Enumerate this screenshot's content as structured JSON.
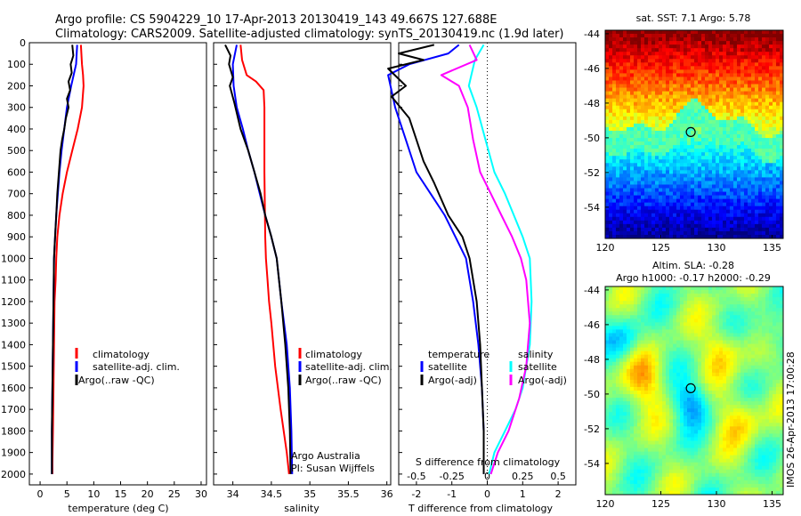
{
  "title_line1": "Argo profile: CS 5904229_10 17-Apr-2013 20130419_143 49.667S 127.688E",
  "title_line2": "Climatology: CARS2009. Satellite-adjusted climatology: synTS_20130419.nc (1.9d later)",
  "colors": {
    "climatology": "#ff0000",
    "satellite": "#0000ff",
    "argo": "#000000",
    "sat_salinity": "#00ffff",
    "argo_salinity": "#ff00ff"
  },
  "chart_data": [
    {
      "type": "line",
      "xlabel": "temperature (deg C)",
      "xlim": [
        -2,
        31
      ],
      "ylim": [
        2050,
        0
      ],
      "xticks": [
        "0",
        "5",
        "10",
        "15",
        "20",
        "25",
        "30"
      ],
      "yticks": [
        "0",
        "100",
        "200",
        "300",
        "400",
        "500",
        "600",
        "700",
        "800",
        "900",
        "1000",
        "1100",
        "1200",
        "1300",
        "1400",
        "1500",
        "1600",
        "1700",
        "1800",
        "1900",
        "2000"
      ],
      "legend": [
        "climatology",
        "satellite-adj. clim.",
        "Argo(..raw -QC)"
      ],
      "series": [
        {
          "name": "climatology",
          "x": [
            7.6,
            7.8,
            8.0,
            8.1,
            7.8,
            7.0,
            6.0,
            5.0,
            4.2,
            3.6,
            3.2,
            3.0,
            2.9,
            2.7,
            2.6,
            2.5,
            2.4,
            2.3,
            2.3
          ],
          "y": [
            10,
            100,
            150,
            200,
            300,
            400,
            500,
            600,
            700,
            800,
            900,
            1000,
            1100,
            1200,
            1400,
            1600,
            1800,
            1950,
            2000
          ]
        },
        {
          "name": "satellite-adj. clim.",
          "x": [
            6.9,
            6.7,
            5.8,
            5.0,
            4.5,
            4.0,
            3.6,
            3.3,
            3.0,
            2.8,
            2.6,
            2.5,
            2.4,
            2.3,
            2.2,
            2.2
          ],
          "y": [
            10,
            100,
            200,
            300,
            400,
            500,
            600,
            700,
            800,
            900,
            1000,
            1200,
            1400,
            1600,
            1800,
            2000
          ]
        },
        {
          "name": "Argo(..raw -QC)",
          "x": [
            6.0,
            6.2,
            5.7,
            5.9,
            5.3,
            5.6,
            5.0,
            5.3,
            4.8,
            4.5,
            4.1,
            3.8,
            3.5,
            3.2,
            3.0,
            2.8,
            2.6,
            2.5,
            2.4,
            2.3,
            2.2,
            2.2
          ],
          "y": [
            10,
            60,
            100,
            140,
            180,
            220,
            260,
            300,
            350,
            400,
            450,
            500,
            600,
            700,
            800,
            900,
            1000,
            1200,
            1400,
            1600,
            1800,
            2000
          ]
        }
      ]
    },
    {
      "type": "line",
      "xlabel": "salinity",
      "xlim": [
        33.75,
        36.05
      ],
      "ylim": [
        2050,
        0
      ],
      "xticks": [
        "34",
        "34.5",
        "35",
        "35.5",
        "36"
      ],
      "legend": [
        "climatology",
        "satellite-adj. clim.",
        "Argo(..raw -QC)"
      ],
      "annotation": [
        "Argo Australia",
        "PI: Susan Wijffels"
      ],
      "series": [
        {
          "name": "climatology",
          "x": [
            34.1,
            34.12,
            34.18,
            34.3,
            34.4,
            34.41,
            34.41,
            34.42,
            34.43,
            34.45,
            34.47,
            34.5,
            34.55,
            34.62,
            34.7,
            34.73
          ],
          "y": [
            10,
            80,
            150,
            180,
            220,
            300,
            600,
            900,
            1000,
            1100,
            1200,
            1300,
            1500,
            1700,
            1900,
            2000
          ]
        },
        {
          "name": "satellite-adj. clim.",
          "x": [
            34.05,
            34.0,
            34.01,
            34.05,
            34.13,
            34.2,
            34.28,
            34.35,
            34.42,
            34.5,
            34.57,
            34.63,
            34.7,
            34.74,
            34.76,
            34.77
          ],
          "y": [
            10,
            100,
            200,
            300,
            400,
            500,
            600,
            700,
            800,
            900,
            1000,
            1200,
            1400,
            1600,
            1800,
            2000
          ]
        },
        {
          "name": "Argo(..raw -QC)",
          "x": [
            33.9,
            33.97,
            33.95,
            34.0,
            33.96,
            34.02,
            34.1,
            34.2,
            34.28,
            34.36,
            34.42,
            34.5,
            34.57,
            34.63,
            34.68,
            34.72,
            34.74,
            34.75
          ],
          "y": [
            10,
            60,
            100,
            160,
            200,
            280,
            400,
            500,
            600,
            700,
            800,
            900,
            1000,
            1200,
            1400,
            1600,
            1800,
            2000
          ]
        }
      ]
    },
    {
      "type": "line",
      "xlabel": "T difference from climatology",
      "top_label": "S difference from climatology",
      "xlim": [
        -2.5,
        2.5
      ],
      "ylim": [
        2050,
        0
      ],
      "xticks": [
        "-2",
        "-1",
        "0",
        "1",
        "2"
      ],
      "sticks": [
        "-0.5",
        "-0.25",
        "0",
        "0.25",
        "0.5"
      ],
      "legend_t": [
        "temperature",
        "satellite",
        "Argo(-adj)"
      ],
      "legend_s": [
        "salinity",
        "satellite",
        "Argo(-adj)"
      ],
      "series": [
        {
          "name": "temperature satellite",
          "x": [
            -0.8,
            -1.1,
            -2.2,
            -2.8,
            -2.6,
            -2.3,
            -2.0,
            -1.6,
            -1.2,
            -0.9,
            -0.6,
            -0.4,
            -0.25,
            -0.15,
            -0.1,
            -0.1
          ],
          "y": [
            10,
            50,
            100,
            150,
            300,
            450,
            600,
            700,
            800,
            900,
            1000,
            1200,
            1400,
            1600,
            1800,
            2000
          ]
        },
        {
          "name": "temperature Argo(-adj)",
          "x": [
            -1.5,
            -2.5,
            -1.8,
            -2.8,
            -2.3,
            -2.7,
            -2.2,
            -2.0,
            -1.8,
            -1.5,
            -1.1,
            -0.7,
            -0.5,
            -0.3,
            -0.2,
            -0.15,
            -0.1,
            -0.1
          ],
          "y": [
            10,
            50,
            80,
            120,
            200,
            250,
            350,
            450,
            550,
            650,
            800,
            900,
            1000,
            1200,
            1400,
            1600,
            1800,
            2000
          ]
        },
        {
          "name": "salinity satellite",
          "x": [
            -0.1,
            -0.35,
            -0.45,
            -0.52,
            -0.3,
            -0.05,
            0.2,
            0.5,
            0.75,
            1.0,
            1.2,
            1.25,
            1.2,
            1.0,
            0.8,
            0.5,
            0.2,
            0.05
          ],
          "y": [
            10,
            80,
            150,
            200,
            300,
            450,
            600,
            700,
            800,
            900,
            1000,
            1200,
            1400,
            1600,
            1700,
            1800,
            1900,
            2000
          ]
        },
        {
          "name": "salinity Argo(-adj)",
          "x": [
            -0.5,
            -0.3,
            -1.3,
            -0.8,
            -0.55,
            -0.4,
            -0.2,
            0.1,
            0.4,
            0.7,
            0.95,
            1.1,
            1.2,
            1.1,
            0.9,
            0.6,
            0.3,
            0.1
          ],
          "y": [
            10,
            80,
            150,
            200,
            300,
            450,
            600,
            700,
            800,
            900,
            1000,
            1100,
            1300,
            1500,
            1650,
            1800,
            1900,
            2000
          ]
        }
      ]
    },
    {
      "type": "heatmap",
      "title": "sat. SST: 7.1 Argo: 5.78",
      "xlim": [
        120,
        136
      ],
      "ylim": [
        -55.8,
        -43.8
      ],
      "xticks": [
        "120",
        "125",
        "130",
        "135"
      ],
      "yticks": [
        "-44",
        "-46",
        "-48",
        "-50",
        "-52",
        "-54"
      ],
      "marker": {
        "x": 127.688,
        "y": -49.667
      }
    },
    {
      "type": "heatmap",
      "title_line1": "Altim. SLA: -0.28",
      "title_line2": "Argo h1000: -0.17 h2000: -0.29",
      "xlim": [
        120,
        136
      ],
      "ylim": [
        -55.8,
        -43.8
      ],
      "xticks": [
        "120",
        "125",
        "130",
        "135"
      ],
      "yticks": [
        "-44",
        "-46",
        "-48",
        "-50",
        "-52",
        "-54"
      ],
      "marker": {
        "x": 127.688,
        "y": -49.667
      },
      "side_label": "IMOS 26-Apr-2013 17:00:28"
    }
  ]
}
